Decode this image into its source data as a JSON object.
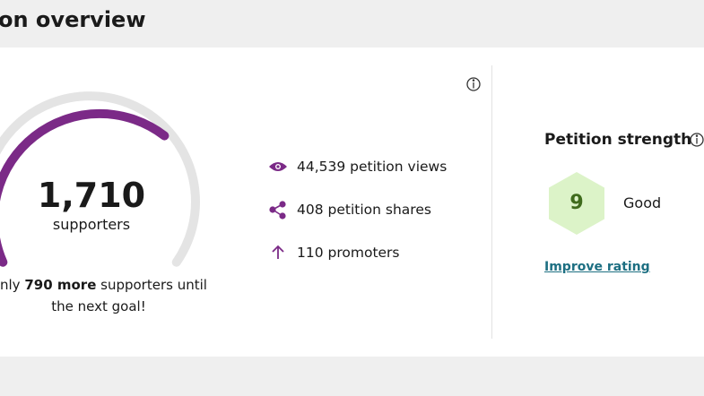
{
  "header": {
    "title": "on overview"
  },
  "progress": {
    "count": "1,710",
    "label": "supporters",
    "message_start": "nly ",
    "message_bold": "790 more",
    "message_end": " supporters until",
    "message_line2": "the next goal!"
  },
  "stats": [
    "44,539 petition views",
    "408 petition shares",
    "110 promoters"
  ],
  "strength": {
    "title": "Petition strength",
    "score": "9",
    "rating": "Good",
    "link": "Improve rating"
  }
}
